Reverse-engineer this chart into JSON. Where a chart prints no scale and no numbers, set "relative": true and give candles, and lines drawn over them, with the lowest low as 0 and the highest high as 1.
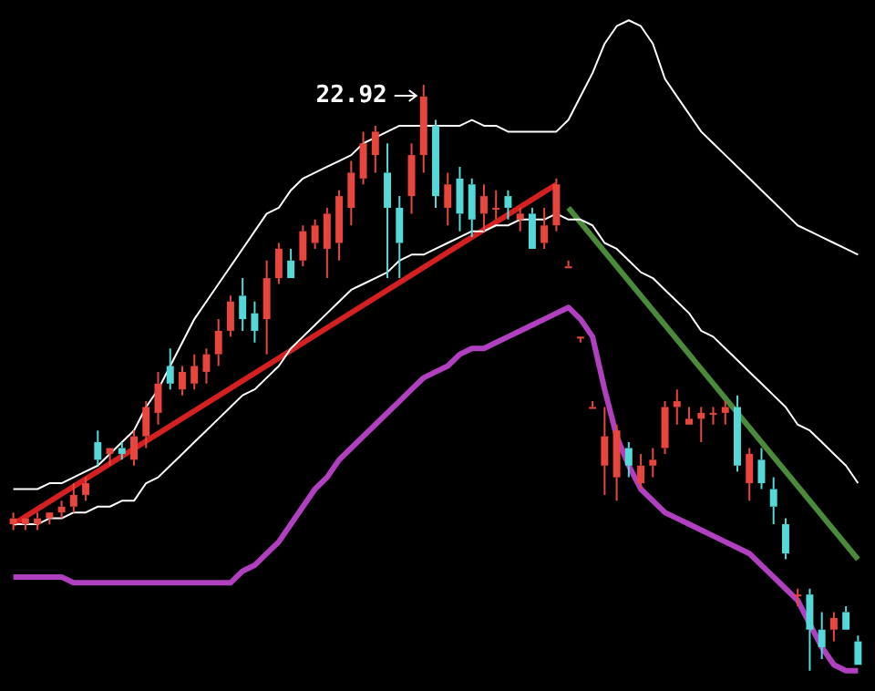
{
  "chart_data": {
    "type": "candlestick",
    "relative": true,
    "categories": [
      null,
      null,
      null,
      null,
      null,
      null,
      null,
      null,
      null,
      null,
      null,
      null,
      null,
      null,
      null,
      null,
      null,
      null,
      null,
      null,
      null,
      null,
      null,
      null,
      null,
      null,
      null,
      null,
      null,
      null,
      null,
      null,
      null,
      null,
      null,
      null,
      null,
      null,
      null,
      null,
      null,
      null,
      null,
      null,
      null,
      null,
      null,
      null,
      null,
      null,
      null,
      null,
      null,
      null,
      null,
      null,
      null,
      null,
      null,
      null,
      null,
      null,
      null,
      null,
      null,
      null,
      null,
      null,
      null,
      null,
      null
    ],
    "ohlc": [
      [
        0.25,
        0.27,
        0.24,
        0.26
      ],
      [
        0.25,
        0.26,
        0.24,
        0.26
      ],
      [
        0.25,
        0.27,
        0.24,
        0.26
      ],
      [
        0.26,
        0.27,
        0.25,
        0.27
      ],
      [
        0.27,
        0.29,
        0.26,
        0.28
      ],
      [
        0.28,
        0.32,
        0.27,
        0.3
      ],
      [
        0.3,
        0.33,
        0.29,
        0.32
      ],
      [
        0.39,
        0.41,
        0.35,
        0.36
      ],
      [
        0.37,
        0.38,
        0.35,
        0.38
      ],
      [
        0.38,
        0.39,
        0.36,
        0.37
      ],
      [
        0.36,
        0.41,
        0.35,
        0.4
      ],
      [
        0.4,
        0.46,
        0.38,
        0.45
      ],
      [
        0.44,
        0.51,
        0.42,
        0.49
      ],
      [
        0.52,
        0.55,
        0.48,
        0.49
      ],
      [
        0.48,
        0.52,
        0.47,
        0.51
      ],
      [
        0.49,
        0.54,
        0.48,
        0.52
      ],
      [
        0.51,
        0.55,
        0.49,
        0.54
      ],
      [
        0.54,
        0.6,
        0.52,
        0.58
      ],
      [
        0.58,
        0.64,
        0.57,
        0.63
      ],
      [
        0.64,
        0.67,
        0.58,
        0.6
      ],
      [
        0.61,
        0.63,
        0.56,
        0.58
      ],
      [
        0.6,
        0.7,
        0.54,
        0.67
      ],
      [
        0.67,
        0.73,
        0.66,
        0.72
      ],
      [
        0.7,
        0.72,
        0.67,
        0.67
      ],
      [
        0.7,
        0.76,
        0.69,
        0.75
      ],
      [
        0.73,
        0.77,
        0.72,
        0.76
      ],
      [
        0.72,
        0.79,
        0.67,
        0.78
      ],
      [
        0.73,
        0.82,
        0.7,
        0.81
      ],
      [
        0.79,
        0.87,
        0.76,
        0.85
      ],
      [
        0.84,
        0.92,
        0.83,
        0.9
      ],
      [
        0.88,
        0.93,
        0.85,
        0.92
      ],
      [
        0.85,
        0.9,
        0.67,
        0.79
      ],
      [
        0.79,
        0.81,
        0.67,
        0.73
      ],
      [
        0.81,
        0.9,
        0.78,
        0.88
      ],
      [
        0.88,
        1,
        0.85,
        0.98
      ],
      [
        0.93,
        0.94,
        0.79,
        0.81
      ],
      [
        0.79,
        0.85,
        0.76,
        0.83
      ],
      [
        0.84,
        0.86,
        0.75,
        0.78
      ],
      [
        0.83,
        0.84,
        0.74,
        0.77
      ],
      [
        0.78,
        0.83,
        0.75,
        0.81
      ],
      [
        0.79,
        0.82,
        0.77,
        0.79
      ],
      [
        0.81,
        0.82,
        0.77,
        0.79
      ],
      [
        0.77,
        0.79,
        0.75,
        0.78
      ],
      [
        0.78,
        0.79,
        0.72,
        0.72
      ],
      [
        0.73,
        0.79,
        0.72,
        0.76
      ],
      [
        0.76,
        0.84,
        0.75,
        0.83
      ],
      [
        0.69,
        0.7,
        0.69,
        0.69
      ],
      [
        0.57,
        0.57,
        0.56,
        0.57
      ],
      [
        0.45,
        0.46,
        0.45,
        0.45
      ],
      [
        0.35,
        0.45,
        0.3,
        0.4
      ],
      [
        0.33,
        0.42,
        0.29,
        0.41
      ],
      [
        0.38,
        0.39,
        0.33,
        0.35
      ],
      [
        0.32,
        0.37,
        0.31,
        0.35
      ],
      [
        0.35,
        0.38,
        0.33,
        0.36
      ],
      [
        0.38,
        0.46,
        0.37,
        0.45
      ],
      [
        0.45,
        0.48,
        0.42,
        0.46
      ],
      [
        0.42,
        0.45,
        0.42,
        0.43
      ],
      [
        0.43,
        0.45,
        0.39,
        0.44
      ],
      [
        0.44,
        0.45,
        0.42,
        0.44
      ],
      [
        0.44,
        0.46,
        0.42,
        0.45
      ],
      [
        0.45,
        0.47,
        0.34,
        0.35
      ],
      [
        0.32,
        0.38,
        0.29,
        0.37
      ],
      [
        0.36,
        0.38,
        0.31,
        0.32
      ],
      [
        0.31,
        0.33,
        0.25,
        0.28
      ],
      [
        0.25,
        0.26,
        0.19,
        0.2
      ],
      [
        0.13,
        0.14,
        0.11,
        0.13
      ],
      [
        0.13,
        0.14,
        0,
        0.07
      ],
      [
        0.07,
        0.1,
        0.02,
        0.04
      ],
      [
        0.07,
        0.1,
        0.05,
        0.09
      ],
      [
        0.1,
        0.11,
        0.07,
        0.07
      ],
      [
        0.05,
        0.06,
        0.01,
        0.01
      ]
    ],
    "colors": [
      "#e8463c",
      "#e8463c",
      "#e8463c",
      "#e8463c",
      "#e8463c",
      "#e8463c",
      "#e8463c",
      "#54d8d8",
      "#e8463c",
      "#54d8d8",
      "#e8463c",
      "#e8463c",
      "#e8463c",
      "#54d8d8",
      "#e8463c",
      "#e8463c",
      "#e8463c",
      "#e8463c",
      "#e8463c",
      "#54d8d8",
      "#54d8d8",
      "#e8463c",
      "#e8463c",
      "#54d8d8",
      "#e8463c",
      "#e8463c",
      "#e8463c",
      "#e8463c",
      "#e8463c",
      "#e8463c",
      "#e8463c",
      "#54d8d8",
      "#54d8d8",
      "#e8463c",
      "#e8463c",
      "#54d8d8",
      "#e8463c",
      "#54d8d8",
      "#54d8d8",
      "#e8463c",
      "#e8463c",
      "#54d8d8",
      "#e8463c",
      "#54d8d8",
      "#e8463c",
      "#e8463c",
      "#e8463c",
      "#e8463c",
      "#e8463c",
      "#e8463c",
      "#e8463c",
      "#54d8d8",
      "#e8463c",
      "#e8463c",
      "#e8463c",
      "#e8463c",
      "#e8463c",
      "#e8463c",
      "#e8463c",
      "#e8463c",
      "#54d8d8",
      "#e8463c",
      "#54d8d8",
      "#54d8d8",
      "#54d8d8",
      "#e8463c",
      "#54d8d8",
      "#54d8d8",
      "#e8463c",
      "#54d8d8",
      "#54d8d8"
    ],
    "series": [
      {
        "type": "line",
        "color": "#ffffff",
        "values": [
          0.31,
          0.31,
          0.31,
          0.32,
          0.32,
          0.33,
          0.34,
          0.35,
          0.37,
          0.39,
          0.41,
          0.45,
          0.48,
          0.52,
          0.56,
          0.6,
          0.63,
          0.66,
          0.69,
          0.72,
          0.75,
          0.78,
          0.79,
          0.82,
          0.84,
          0.85,
          0.86,
          0.87,
          0.88,
          0.9,
          0.91,
          0.92,
          0.93,
          0.93,
          0.93,
          0.93,
          0.93,
          0.93,
          0.94,
          0.93,
          0.93,
          0.92,
          0.92,
          0.92,
          0.92,
          0.92,
          0.94,
          0.98,
          1.02,
          1.07,
          1.1,
          1.11,
          1.1,
          1.07,
          1.01,
          0.98,
          0.95,
          0.92,
          0.9,
          0.88,
          0.86,
          0.84,
          0.82,
          0.8,
          0.78,
          0.76,
          0.75,
          0.74,
          0.73,
          0.72,
          0.71
        ]
      },
      {
        "type": "line",
        "color": "#ffffff",
        "values": [
          0.25,
          0.25,
          0.25,
          0.26,
          0.26,
          0.27,
          0.27,
          0.28,
          0.28,
          0.29,
          0.29,
          0.32,
          0.33,
          0.35,
          0.37,
          0.39,
          0.41,
          0.43,
          0.45,
          0.47,
          0.48,
          0.5,
          0.52,
          0.55,
          0.57,
          0.59,
          0.61,
          0.63,
          0.65,
          0.66,
          0.67,
          0.68,
          0.7,
          0.71,
          0.71,
          0.72,
          0.73,
          0.74,
          0.75,
          0.75,
          0.76,
          0.76,
          0.77,
          0.77,
          0.77,
          0.78,
          0.77,
          0.77,
          0.76,
          0.73,
          0.72,
          0.7,
          0.68,
          0.67,
          0.65,
          0.63,
          0.61,
          0.58,
          0.57,
          0.55,
          0.53,
          0.51,
          0.49,
          0.47,
          0.45,
          0.42,
          0.41,
          0.39,
          0.37,
          0.35,
          0.32
        ]
      },
      {
        "type": "line",
        "color": "#b040c0",
        "values": [
          0.16,
          0.16,
          0.16,
          0.16,
          0.16,
          0.15,
          0.15,
          0.15,
          0.15,
          0.15,
          0.15,
          0.15,
          0.15,
          0.15,
          0.15,
          0.15,
          0.15,
          0.15,
          0.15,
          0.17,
          0.18,
          0.2,
          0.22,
          0.25,
          0.28,
          0.31,
          0.33,
          0.36,
          0.38,
          0.4,
          0.42,
          0.44,
          0.46,
          0.48,
          0.5,
          0.51,
          0.52,
          0.54,
          0.55,
          0.55,
          0.56,
          0.57,
          0.58,
          0.59,
          0.6,
          0.61,
          0.62,
          0.6,
          0.57,
          0.48,
          0.4,
          0.35,
          0.31,
          0.29,
          0.27,
          0.26,
          0.25,
          0.24,
          0.23,
          0.22,
          0.21,
          0.2,
          0.18,
          0.16,
          0.14,
          0.12,
          0.08,
          0.04,
          0.01,
          0,
          0
        ]
      },
      {
        "type": "line",
        "color": "#d42020",
        "values": [
          0.25,
          null,
          null,
          null,
          null,
          null,
          null,
          null,
          null,
          null,
          null,
          null,
          null,
          null,
          null,
          null,
          null,
          null,
          null,
          null,
          null,
          null,
          null,
          null,
          null,
          null,
          null,
          null,
          null,
          null,
          null,
          null,
          null,
          null,
          null,
          null,
          null,
          null,
          null,
          null,
          null,
          null,
          null,
          null,
          null,
          0.83,
          null,
          null,
          null,
          null,
          null,
          null,
          null,
          null,
          null,
          null,
          null,
          null,
          null,
          null,
          null,
          null,
          null,
          null,
          null,
          null,
          null,
          null,
          null,
          null,
          null
        ]
      },
      {
        "type": "line",
        "color": "#4a8a3a",
        "values": [
          null,
          null,
          null,
          null,
          null,
          null,
          null,
          null,
          null,
          null,
          null,
          null,
          null,
          null,
          null,
          null,
          null,
          null,
          null,
          null,
          null,
          null,
          null,
          null,
          null,
          null,
          null,
          null,
          null,
          null,
          null,
          null,
          null,
          null,
          null,
          null,
          null,
          null,
          null,
          null,
          null,
          null,
          null,
          null,
          null,
          null,
          0.79,
          null,
          null,
          null,
          null,
          null,
          null,
          null,
          null,
          null,
          null,
          null,
          null,
          null,
          null,
          null,
          null,
          null,
          null,
          null,
          null,
          null,
          null,
          null,
          0.19
        ]
      }
    ],
    "annotations": [
      "22.92"
    ]
  }
}
